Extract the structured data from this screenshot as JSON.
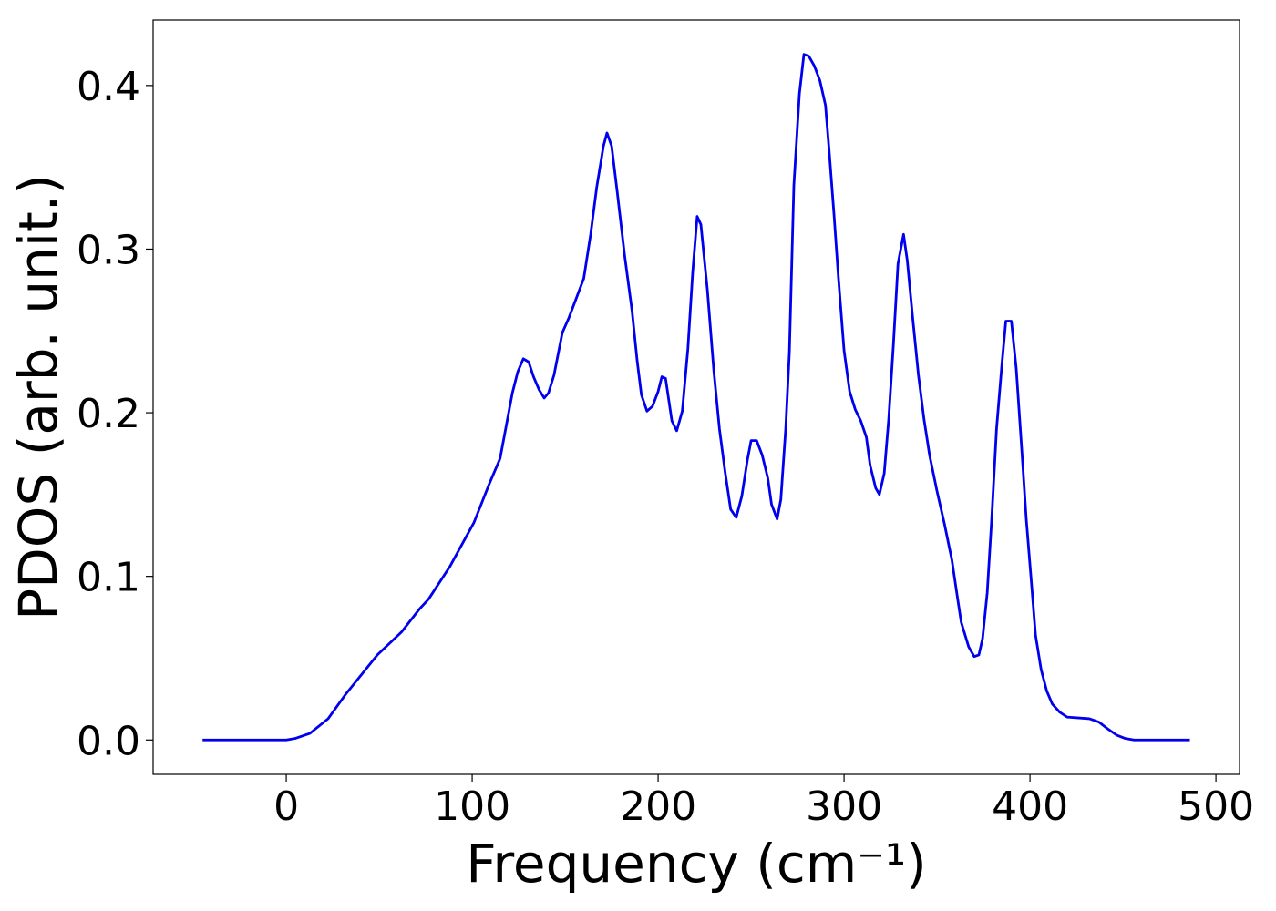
{
  "chart_data": {
    "type": "line",
    "x_label": "Frequency (cm⁻¹)",
    "y_label": "PDOS (arb. unit.)",
    "xlim": [
      -71.6,
      512.7
    ],
    "ylim": [
      -0.021,
      0.44
    ],
    "xticks": [
      0,
      100,
      200,
      300,
      400,
      500
    ],
    "yticks": [
      {
        "value": 0,
        "label": "0.0"
      },
      {
        "value": 0.1,
        "label": "0.1"
      },
      {
        "value": 0.2,
        "label": "0.2"
      },
      {
        "value": 0.3,
        "label": "0.3"
      },
      {
        "value": 0.4,
        "label": "0.4"
      }
    ],
    "grid": false,
    "x": [
      -45,
      0,
      5,
      12.7,
      22.5,
      32,
      49,
      62,
      71.6,
      76.5,
      88,
      101,
      109,
      115,
      121.6,
      124.5,
      127.5,
      130.4,
      133,
      136,
      138.7,
      141,
      144,
      148.5,
      152,
      156,
      160,
      163.7,
      167,
      170.6,
      172.5,
      175,
      178,
      182,
      186,
      188.7,
      191,
      194,
      197,
      200,
      202,
      204,
      207.4,
      210,
      213,
      216,
      218.6,
      221,
      223,
      226.5,
      230,
      233,
      236,
      239,
      242,
      245,
      248,
      250,
      253,
      256,
      259,
      261,
      264,
      266,
      268.6,
      270.6,
      273,
      276,
      278.4,
      281,
      284,
      287,
      290,
      292,
      294.6,
      297,
      300,
      303,
      306,
      309,
      312,
      314,
      317,
      319,
      321.6,
      324,
      326.5,
      329,
      332,
      334,
      337,
      340,
      343,
      346,
      350,
      354,
      358,
      361,
      363,
      367,
      370,
      372.5,
      374.5,
      377,
      379.4,
      382,
      385,
      387,
      390,
      392.6,
      395.6,
      398,
      401,
      403,
      406,
      409,
      412,
      416,
      420,
      432,
      437,
      441.6,
      446.6,
      451,
      456,
      486
    ],
    "series": [
      {
        "color": "#0000ee",
        "values": [
          0,
          0,
          0.001,
          0.004,
          0.013,
          0.028,
          0.052,
          0.066,
          0.08,
          0.086,
          0.106,
          0.133,
          0.156,
          0.172,
          0.212,
          0.225,
          0.233,
          0.231,
          0.222,
          0.214,
          0.209,
          0.212,
          0.223,
          0.249,
          0.258,
          0.27,
          0.282,
          0.309,
          0.338,
          0.363,
          0.371,
          0.363,
          0.335,
          0.296,
          0.262,
          0.232,
          0.211,
          0.201,
          0.204,
          0.213,
          0.222,
          0.221,
          0.195,
          0.189,
          0.201,
          0.239,
          0.286,
          0.32,
          0.315,
          0.275,
          0.225,
          0.19,
          0.164,
          0.141,
          0.136,
          0.149,
          0.171,
          0.183,
          0.183,
          0.174,
          0.16,
          0.144,
          0.135,
          0.147,
          0.19,
          0.237,
          0.339,
          0.395,
          0.419,
          0.418,
          0.412,
          0.403,
          0.388,
          0.36,
          0.321,
          0.282,
          0.238,
          0.213,
          0.202,
          0.195,
          0.185,
          0.168,
          0.154,
          0.15,
          0.163,
          0.196,
          0.241,
          0.291,
          0.309,
          0.293,
          0.257,
          0.223,
          0.196,
          0.174,
          0.152,
          0.132,
          0.11,
          0.087,
          0.072,
          0.057,
          0.051,
          0.052,
          0.062,
          0.09,
          0.135,
          0.19,
          0.231,
          0.256,
          0.256,
          0.227,
          0.177,
          0.135,
          0.093,
          0.064,
          0.043,
          0.03,
          0.022,
          0.017,
          0.014,
          0.013,
          0.011,
          0.007,
          0.003,
          0.001,
          0,
          0
        ]
      }
    ]
  }
}
